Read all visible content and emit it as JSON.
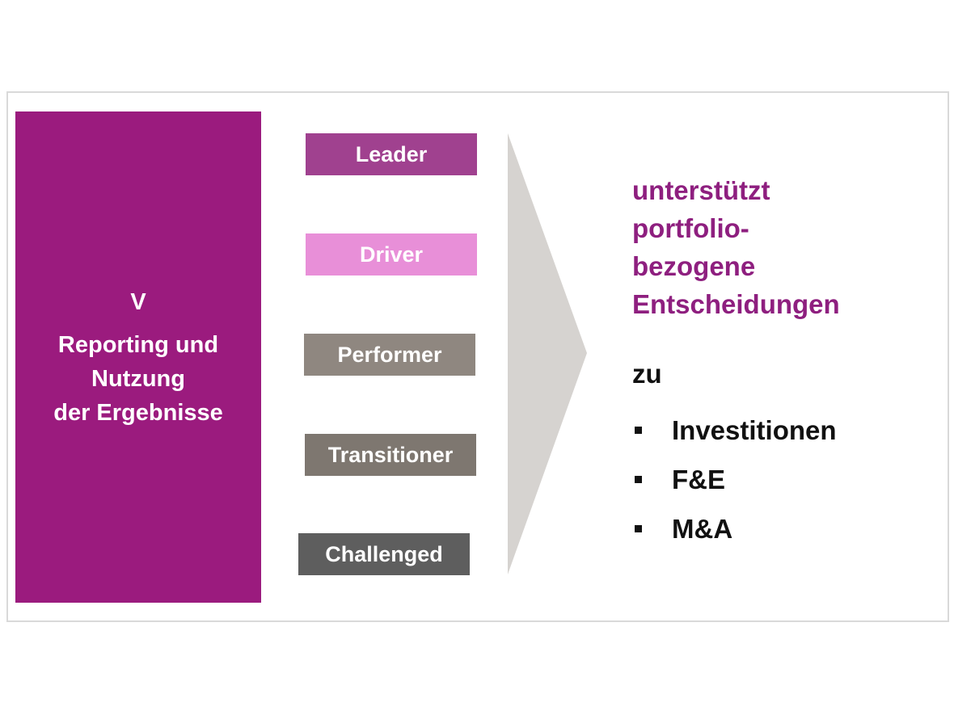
{
  "main_box": {
    "numeral": "V",
    "lines": [
      "Reporting und",
      "Nutzung",
      "der Ergebnisse"
    ],
    "color": "#9b1b7e"
  },
  "categories": [
    {
      "label": "Leader",
      "color": "#a0418f"
    },
    {
      "label": "Driver",
      "color": "#e88fd8"
    },
    {
      "label": "Performer",
      "color": "#8f8780"
    },
    {
      "label": "Transitioner",
      "color": "#7e7770"
    },
    {
      "label": "Challenged",
      "color": "#5e5e5e"
    }
  ],
  "arrow_color": "#d6d3d0",
  "headline": [
    "unterstützt",
    "portfolio-",
    "bezogene",
    "Entscheidungen"
  ],
  "zu": "zu",
  "items": [
    "Investitionen",
    "F&E",
    "M&A"
  ]
}
